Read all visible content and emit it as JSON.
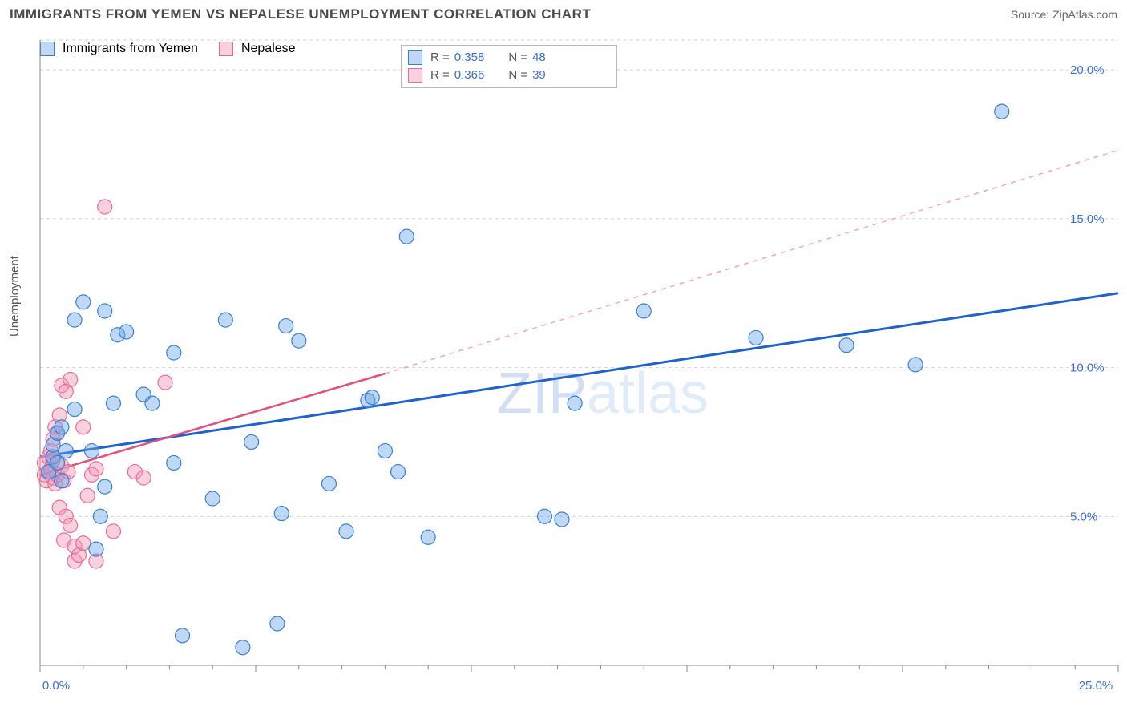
{
  "title": "IMMIGRANTS FROM YEMEN VS NEPALESE UNEMPLOYMENT CORRELATION CHART",
  "source": "Source: ZipAtlas.com",
  "ylabel": "Unemployment",
  "watermark_a": "ZIP",
  "watermark_b": "atlas",
  "chart": {
    "type": "scatter",
    "xlim": [
      0,
      25
    ],
    "ylim": [
      0,
      21
    ],
    "y_ticks": [
      5.0,
      10.0,
      15.0,
      20.0
    ],
    "y_tick_labels": [
      "5.0%",
      "10.0%",
      "15.0%",
      "20.0%"
    ],
    "x_ticks": [
      0,
      5,
      10,
      15,
      20,
      25
    ],
    "x_tick_show_labels": {
      "0": "0.0%",
      "25": "25.0%"
    },
    "grid_color": "#d0d0d0",
    "axis_color": "#888888",
    "marker_radius": 9,
    "series": [
      {
        "key": "blue",
        "label": "Immigrants from Yemen",
        "marker_fill": "#6fa9e8",
        "marker_stroke": "#3a7fd4",
        "R": "0.358",
        "N": "48",
        "trend": {
          "x0": 0,
          "y0": 7.0,
          "x1": 25,
          "y1": 12.5,
          "color": "#1e62d0",
          "width": 3
        },
        "points": [
          [
            0.2,
            6.5
          ],
          [
            0.3,
            7.0
          ],
          [
            0.3,
            7.4
          ],
          [
            0.4,
            6.8
          ],
          [
            0.4,
            7.8
          ],
          [
            0.5,
            8.0
          ],
          [
            0.5,
            6.2
          ],
          [
            0.6,
            7.2
          ],
          [
            0.8,
            8.6
          ],
          [
            0.8,
            11.6
          ],
          [
            1.0,
            12.2
          ],
          [
            1.2,
            7.2
          ],
          [
            1.3,
            3.9
          ],
          [
            1.4,
            5.0
          ],
          [
            1.5,
            11.9
          ],
          [
            1.5,
            6.0
          ],
          [
            1.7,
            8.8
          ],
          [
            1.8,
            11.1
          ],
          [
            2.0,
            11.2
          ],
          [
            2.4,
            9.1
          ],
          [
            2.6,
            8.8
          ],
          [
            3.1,
            6.8
          ],
          [
            3.1,
            10.5
          ],
          [
            3.3,
            1.0
          ],
          [
            4.0,
            5.6
          ],
          [
            4.3,
            11.6
          ],
          [
            4.7,
            0.6
          ],
          [
            4.9,
            7.5
          ],
          [
            5.5,
            1.4
          ],
          [
            5.6,
            5.1
          ],
          [
            5.7,
            11.4
          ],
          [
            6.0,
            10.9
          ],
          [
            6.7,
            6.1
          ],
          [
            7.1,
            4.5
          ],
          [
            7.6,
            8.9
          ],
          [
            7.7,
            9.0
          ],
          [
            8.0,
            7.2
          ],
          [
            8.3,
            6.5
          ],
          [
            8.5,
            14.4
          ],
          [
            9.0,
            4.3
          ],
          [
            11.7,
            5.0
          ],
          [
            12.1,
            4.9
          ],
          [
            12.4,
            8.8
          ],
          [
            14.0,
            11.9
          ],
          [
            16.6,
            11.0
          ],
          [
            18.7,
            10.75
          ],
          [
            20.3,
            10.1
          ],
          [
            22.3,
            18.6
          ]
        ]
      },
      {
        "key": "pink",
        "label": "Nepalese",
        "marker_fill": "#f29ab6",
        "marker_stroke": "#e86d96",
        "R": "0.366",
        "N": "39",
        "trend_solid": {
          "x0": 0,
          "y0": 6.4,
          "x1": 8.0,
          "y1": 9.8,
          "color": "#e54f7b",
          "width": 2.5
        },
        "trend_dash": {
          "x0": 8.0,
          "y0": 9.8,
          "x1": 25,
          "y1": 17.3,
          "color": "#f4a6bd",
          "width": 1.5
        },
        "points": [
          [
            0.1,
            6.4
          ],
          [
            0.1,
            6.8
          ],
          [
            0.15,
            6.2
          ],
          [
            0.2,
            6.5
          ],
          [
            0.2,
            7.0
          ],
          [
            0.25,
            6.6
          ],
          [
            0.25,
            7.2
          ],
          [
            0.3,
            6.3
          ],
          [
            0.3,
            6.9
          ],
          [
            0.3,
            7.6
          ],
          [
            0.35,
            6.1
          ],
          [
            0.35,
            8.0
          ],
          [
            0.4,
            7.8
          ],
          [
            0.4,
            6.4
          ],
          [
            0.45,
            8.4
          ],
          [
            0.45,
            5.3
          ],
          [
            0.5,
            6.7
          ],
          [
            0.5,
            9.4
          ],
          [
            0.55,
            6.2
          ],
          [
            0.55,
            4.2
          ],
          [
            0.6,
            9.2
          ],
          [
            0.6,
            5.0
          ],
          [
            0.65,
            6.5
          ],
          [
            0.7,
            4.7
          ],
          [
            0.7,
            9.6
          ],
          [
            0.8,
            4.0
          ],
          [
            0.8,
            3.5
          ],
          [
            0.9,
            3.7
          ],
          [
            1.0,
            8.0
          ],
          [
            1.0,
            4.1
          ],
          [
            1.1,
            5.7
          ],
          [
            1.2,
            6.4
          ],
          [
            1.3,
            3.5
          ],
          [
            1.3,
            6.6
          ],
          [
            1.5,
            15.4
          ],
          [
            1.7,
            4.5
          ],
          [
            2.2,
            6.5
          ],
          [
            2.4,
            6.3
          ],
          [
            2.9,
            9.5
          ]
        ]
      }
    ]
  },
  "legend_top": {
    "rows": [
      {
        "swatch": "blue",
        "R_label": "R =",
        "R_val": "0.358",
        "N_label": "N =",
        "N_val": "48"
      },
      {
        "swatch": "pink",
        "R_label": "R =",
        "R_val": "0.366",
        "N_label": "N =",
        "N_val": "39"
      }
    ]
  },
  "legend_bottom": [
    {
      "swatch": "blue",
      "label": "Immigrants from Yemen"
    },
    {
      "swatch": "pink",
      "label": "Nepalese"
    }
  ]
}
